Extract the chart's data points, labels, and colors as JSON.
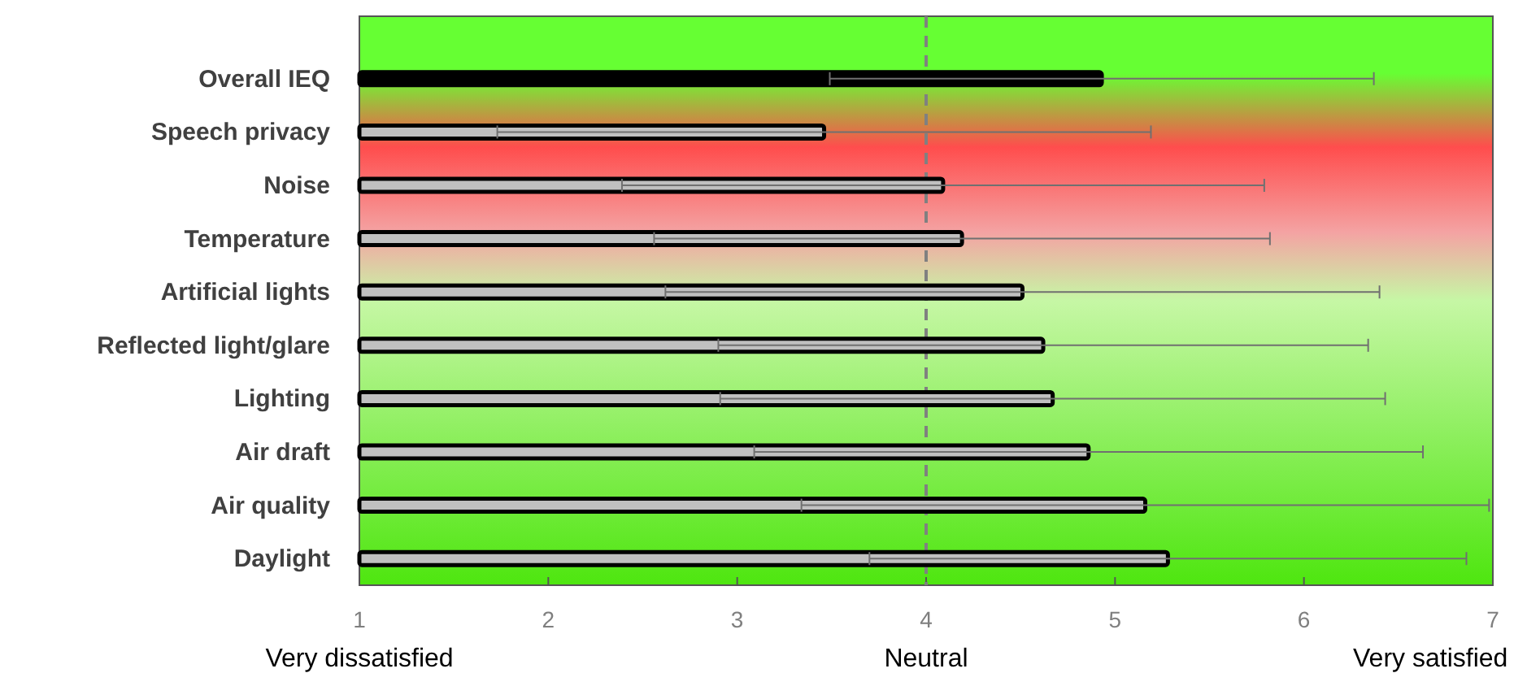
{
  "chart_data": {
    "type": "bar",
    "orientation": "horizontal",
    "categories": [
      "Overall IEQ",
      "Speech privacy",
      "Noise",
      "Temperature",
      "Artificial lights",
      "Reflected light/glare ",
      "Lighting",
      "Air draft",
      "Air quality",
      "Daylight"
    ],
    "values": [
      4.93,
      3.46,
      4.09,
      4.19,
      4.51,
      4.62,
      4.67,
      4.86,
      5.16,
      5.28
    ],
    "errors": [
      1.44,
      1.73,
      1.7,
      1.63,
      1.89,
      1.72,
      1.76,
      1.77,
      1.82,
      1.58
    ],
    "colors": [
      "#000000",
      "#c0c0c0",
      "#c0c0c0",
      "#c0c0c0",
      "#c0c0c0",
      "#c0c0c0",
      "#c0c0c0",
      "#c0c0c0",
      "#c0c0c0",
      "#c0c0c0"
    ],
    "xlim": [
      1,
      7
    ],
    "xticks": [
      1,
      2,
      3,
      4,
      5,
      6,
      7
    ],
    "grid": false,
    "ref_lines": [
      {
        "axis": "x",
        "value": 4,
        "color": "#808080",
        "line_style": "dashed"
      }
    ],
    "annotations": [
      "Very dissatisfied",
      "Neutral",
      "Very satisfied"
    ]
  }
}
